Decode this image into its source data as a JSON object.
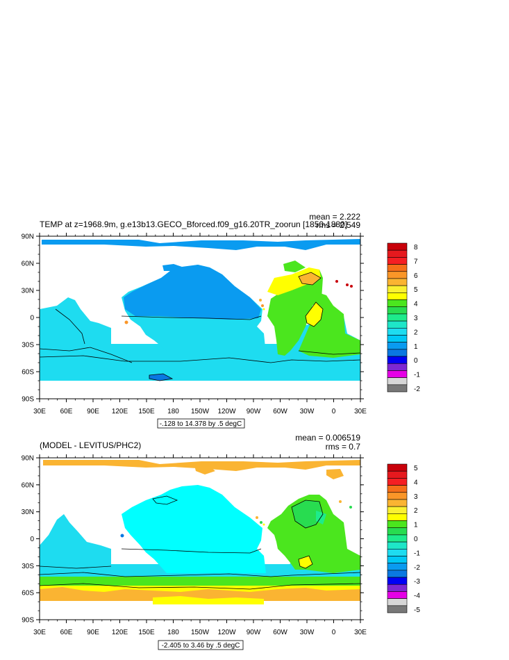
{
  "panels": [
    {
      "title": "TEMP at z=1968.9m, g.e13b13.GECO_Bforced.f09_g16.20TR_zoorun [1850-1880]",
      "stats": {
        "mean": "mean = 2.222",
        "rms": "rms = 2.549"
      },
      "contour_info": "-.128 to 14.378 by .5 degC",
      "lat_labels": [
        "90N",
        "60N",
        "30N",
        "0",
        "30S",
        "60S",
        "90S"
      ],
      "lon_labels": [
        "30E",
        "60E",
        "90E",
        "120E",
        "150E",
        "180",
        "150W",
        "120W",
        "90W",
        "60W",
        "30W",
        "0",
        "30E"
      ],
      "colorbar": {
        "labels": [
          "8",
          "7",
          "6",
          "5",
          "4",
          "3",
          "2",
          "1",
          "0",
          "-1",
          "-2"
        ],
        "colors": [
          "#c8000a",
          "#e6191e",
          "#f51e23",
          "#f56e19",
          "#fa9628",
          "#fab432",
          "#faf032",
          "#ffff00",
          "#4be61e",
          "#28dc50",
          "#1eeb8c",
          "#1ee6c8",
          "#1edcf0",
          "#00c8f5",
          "#0a9bf0",
          "#0a78e1",
          "#0000f5",
          "#7d28d2",
          "#e600e6",
          "#d7d7d7",
          "#787878"
        ]
      },
      "legend_values": [
        8,
        7,
        6,
        5,
        4,
        3,
        2,
        1,
        0,
        -1,
        -2
      ]
    },
    {
      "title": "(MODEL - LEVITUS/PHC2)",
      "stats": {
        "mean": "mean = 0.006519",
        "rms": "rms = 0.7"
      },
      "contour_info": "-2.405 to 3.46 by .5 degC",
      "lat_labels": [
        "90N",
        "60N",
        "30N",
        "0",
        "30S",
        "60S",
        "90S"
      ],
      "lon_labels": [
        "30E",
        "60E",
        "90E",
        "120E",
        "150E",
        "180",
        "150W",
        "120W",
        "90W",
        "60W",
        "30W",
        "0",
        "30E"
      ],
      "colorbar": {
        "labels": [
          "5",
          "4",
          "3",
          "2",
          "1",
          "0",
          "-1",
          "-2",
          "-3",
          "-4",
          "-5"
        ],
        "colors": [
          "#c8000a",
          "#e6191e",
          "#f51e23",
          "#f56e19",
          "#fa9628",
          "#fab432",
          "#faf032",
          "#ffff00",
          "#4be61e",
          "#28dc50",
          "#1eeb8c",
          "#1ee6c8",
          "#1edcf0",
          "#00c8f5",
          "#0a9bf0",
          "#0a78e1",
          "#0000f5",
          "#7d28d2",
          "#e600e6",
          "#d7d7d7",
          "#787878"
        ]
      },
      "legend_values": [
        5,
        4,
        3,
        2,
        1,
        0,
        -1,
        -2,
        -3,
        -4,
        -5
      ]
    }
  ]
}
